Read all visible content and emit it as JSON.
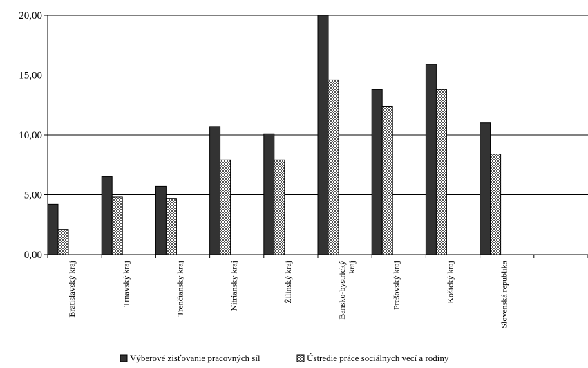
{
  "chart_data": {
    "type": "bar",
    "title": "",
    "xlabel": "",
    "ylabel": "",
    "ylim": [
      0,
      20
    ],
    "yticks": [
      "0,00",
      "5,00",
      "10,00",
      "15,00",
      "20,00"
    ],
    "ytick_values": [
      0,
      5,
      10,
      15,
      20
    ],
    "grid": "horizontal",
    "legend_position": "bottom",
    "categories": [
      [
        "Bratislavský kraj"
      ],
      [
        "Trnavský kraj"
      ],
      [
        "Trenčiansky kraj"
      ],
      [
        "Nitriansky kraj"
      ],
      [
        "Žilinský kraj"
      ],
      [
        "Bansko-bystrický",
        "kraj"
      ],
      [
        "Prešovský kraj"
      ],
      [
        "Košický kraj"
      ],
      [
        "Slovenská republika"
      ]
    ],
    "series": [
      {
        "name": "Výberové zisťovanie pracovných síl",
        "color": "#333333",
        "values": [
          4.2,
          6.5,
          5.7,
          10.7,
          10.1,
          20.0,
          13.8,
          15.9,
          11.0
        ]
      },
      {
        "name": "Ústredie práce sociálnych vecí a rodiny",
        "color": "#c8c8c8",
        "pattern": "checkered",
        "values": [
          2.1,
          4.8,
          4.7,
          7.9,
          7.9,
          14.6,
          12.4,
          13.8,
          8.4
        ]
      }
    ]
  }
}
